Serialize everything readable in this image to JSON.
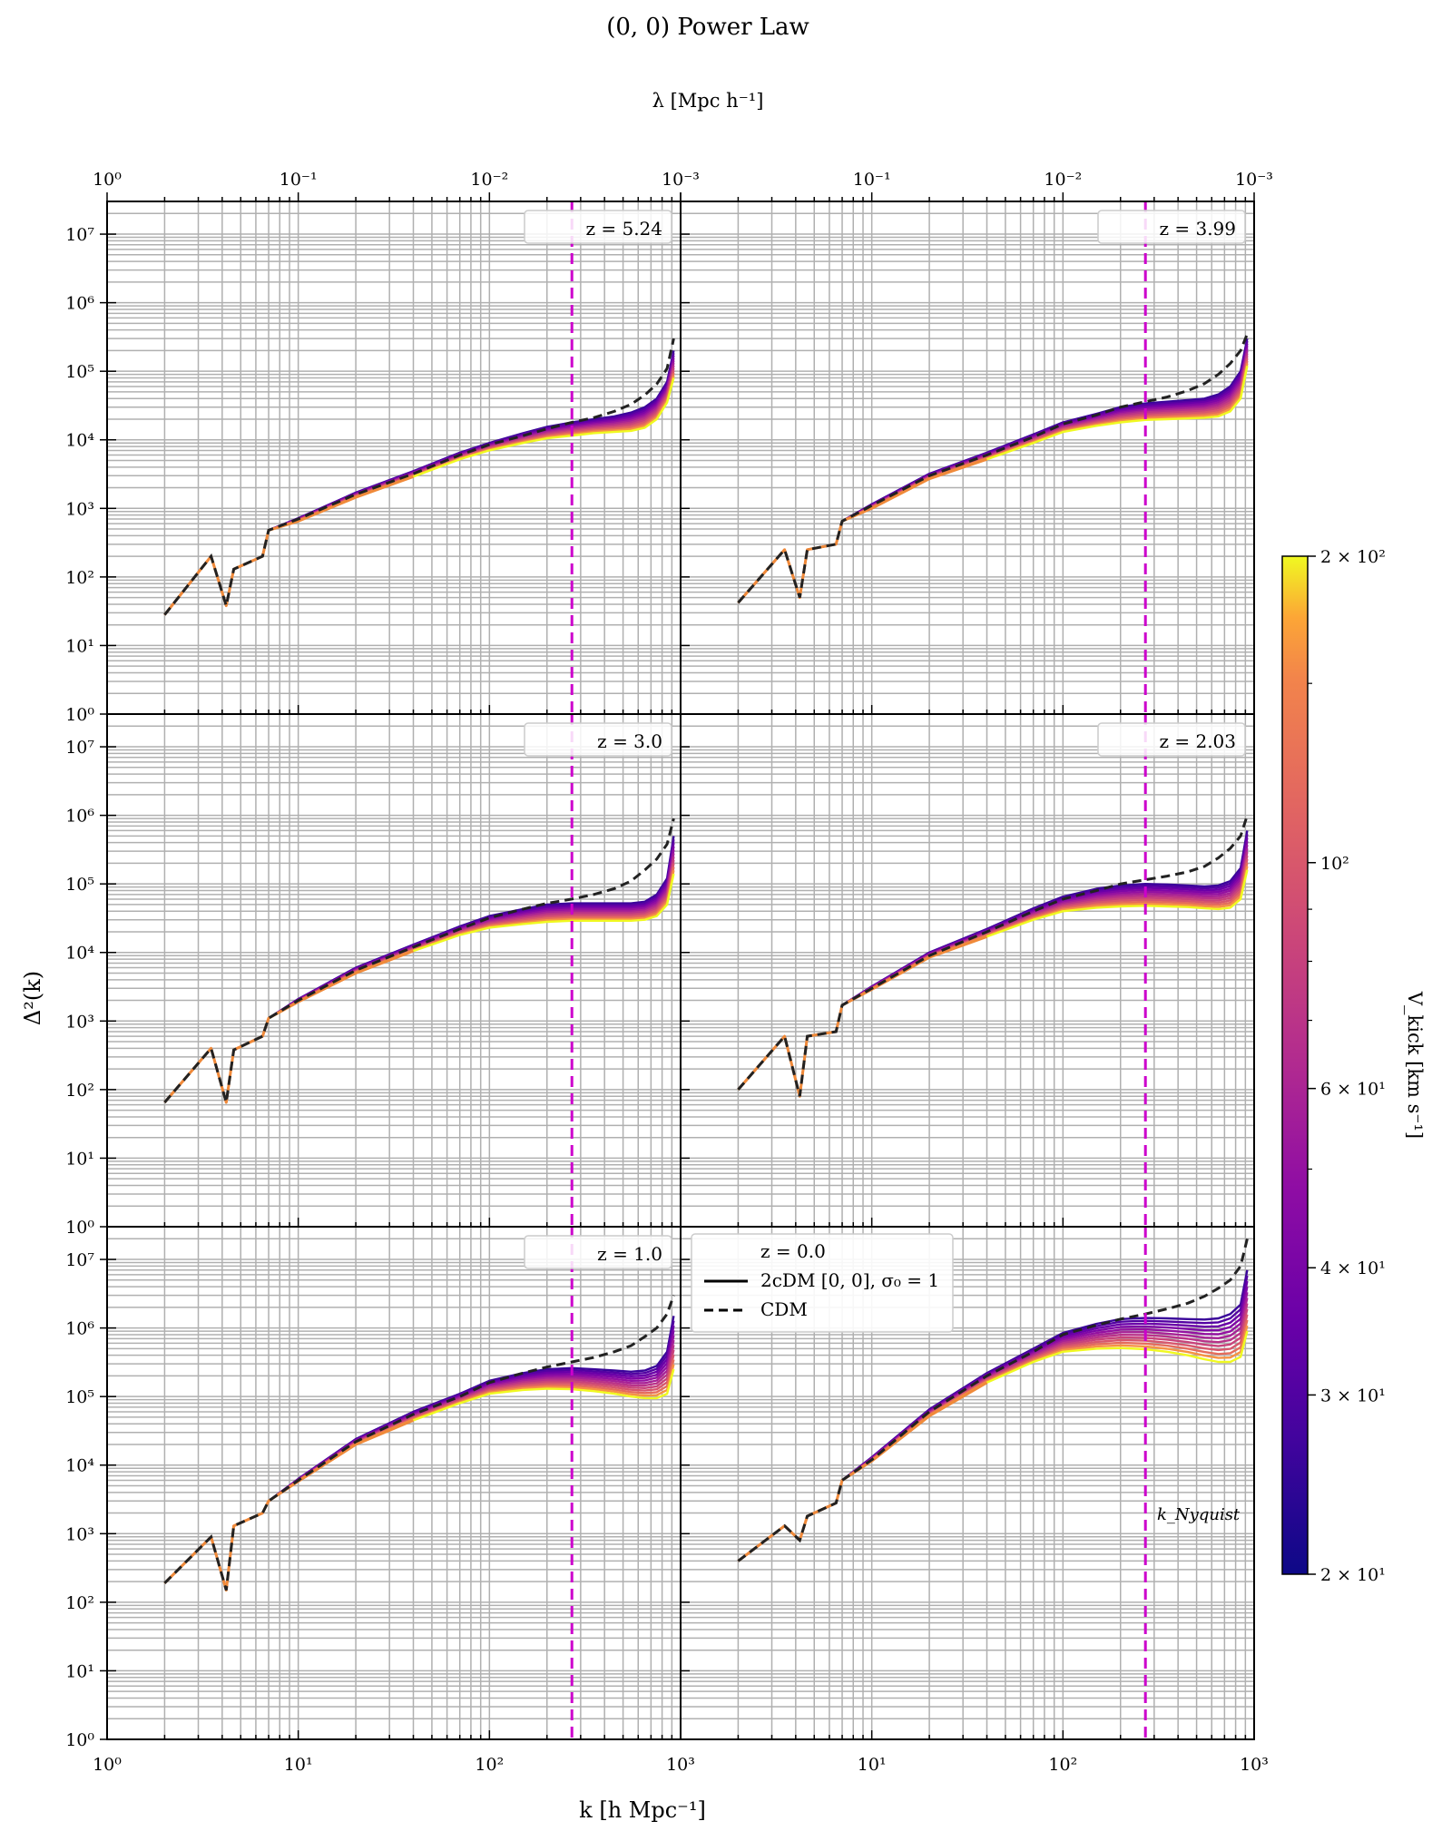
{
  "title": "(0, 0) Power Law",
  "top_axis_label": "λ [Mpc h⁻¹]",
  "bottom_axis_label": "k [h Mpc⁻¹]",
  "left_axis_label": "Δ²(k)",
  "colorbar": {
    "label": "V_kick [km s⁻¹]",
    "colormap": "plasma",
    "range": [
      20,
      200
    ],
    "scale": "log",
    "tick_labels": [
      "2 × 10¹",
      "3 × 10¹",
      "4 × 10¹",
      "6 × 10¹",
      "10²",
      "2 × 10²"
    ],
    "tick_values": [
      20,
      30,
      40,
      60,
      100,
      200
    ]
  },
  "legend": {
    "title": "z = 0.0",
    "entries": [
      {
        "label": "2cDM [0, 0], σ₀ = 1",
        "style": "solid"
      },
      {
        "label": "CDM",
        "style": "dashed"
      }
    ]
  },
  "annotation": "k_Nyquist",
  "chart_data": {
    "type": "line",
    "layout": "3x2 panels, shared axes",
    "x_scale": "log",
    "y_scale": "log",
    "xlim": [
      1,
      1000
    ],
    "ylim": [
      1,
      30000000
    ],
    "x_tick_labels": [
      "10⁰",
      "10¹",
      "10²",
      "10³"
    ],
    "y_tick_labels": [
      "10⁰",
      "10¹",
      "10²",
      "10³",
      "10⁴",
      "10⁵",
      "10⁶",
      "10⁷"
    ],
    "top_x_tick_labels": [
      "10⁰",
      "10⁻¹",
      "10⁻²",
      "10⁻³"
    ],
    "grid": true,
    "vertical_line": {
      "x": 270,
      "color": "#cc00cc",
      "style": "dashed"
    },
    "series_count": 12,
    "panels": [
      {
        "label": "z = 5.24",
        "k_points": [
          2,
          3.5,
          4.2,
          4.6,
          6.5,
          7,
          10,
          20,
          40,
          70,
          100,
          150,
          200,
          270,
          350,
          450,
          550,
          650,
          750,
          850,
          920
        ],
        "cdm": [
          28,
          200,
          38,
          130,
          200,
          480,
          700,
          1600,
          3200,
          6000,
          8500,
          11500,
          14500,
          18000,
          21000,
          26000,
          33000,
          45000,
          65000,
          110000,
          300000
        ],
        "low_v": [
          28,
          200,
          38,
          130,
          200,
          480,
          720,
          1700,
          3500,
          6500,
          9000,
          12500,
          15500,
          18000,
          20000,
          22000,
          25000,
          30000,
          40000,
          70000,
          200000
        ],
        "high_v": [
          28,
          200,
          38,
          130,
          200,
          480,
          650,
          1450,
          2900,
          5200,
          7000,
          9000,
          10500,
          11500,
          12500,
          13000,
          13500,
          15000,
          20000,
          35000,
          80000
        ]
      },
      {
        "label": "z = 3.99",
        "k_points": [
          2,
          3.5,
          4.2,
          4.6,
          6.5,
          7,
          10,
          20,
          40,
          70,
          100,
          150,
          200,
          270,
          350,
          450,
          550,
          650,
          750,
          850,
          920
        ],
        "cdm": [
          42,
          250,
          50,
          250,
          300,
          650,
          1100,
          3000,
          6000,
          11000,
          17000,
          23000,
          30000,
          36000,
          42000,
          52000,
          66000,
          90000,
          130000,
          200000,
          350000
        ],
        "low_v": [
          42,
          250,
          50,
          250,
          300,
          650,
          1150,
          3200,
          6500,
          12000,
          18000,
          24000,
          30000,
          34000,
          36000,
          38000,
          40000,
          46000,
          60000,
          100000,
          300000
        ],
        "high_v": [
          42,
          250,
          50,
          250,
          300,
          650,
          1000,
          2700,
          5200,
          9000,
          13000,
          16000,
          18000,
          19500,
          20000,
          20500,
          21000,
          22000,
          26000,
          40000,
          120000
        ]
      },
      {
        "label": "z = 3.0",
        "k_points": [
          2,
          3.5,
          4.2,
          4.6,
          6.5,
          7,
          10,
          20,
          40,
          70,
          100,
          150,
          200,
          270,
          350,
          450,
          550,
          650,
          750,
          850,
          920
        ],
        "cdm": [
          65,
          400,
          65,
          380,
          600,
          1100,
          2000,
          5500,
          12000,
          22000,
          32000,
          43000,
          52000,
          60000,
          70000,
          85000,
          110000,
          160000,
          230000,
          380000,
          900000
        ],
        "low_v": [
          65,
          400,
          65,
          380,
          600,
          1100,
          2100,
          6000,
          13000,
          24000,
          34000,
          43000,
          50000,
          52000,
          52000,
          52000,
          52000,
          55000,
          70000,
          120000,
          500000
        ],
        "high_v": [
          65,
          400,
          65,
          380,
          600,
          1100,
          1900,
          5000,
          10500,
          18000,
          23000,
          26000,
          28000,
          29000,
          29000,
          29000,
          29000,
          30000,
          34000,
          50000,
          140000
        ]
      },
      {
        "label": "z = 2.03",
        "k_points": [
          2,
          3.5,
          4.2,
          4.6,
          6.5,
          7,
          10,
          20,
          40,
          70,
          100,
          150,
          200,
          270,
          350,
          450,
          550,
          650,
          750,
          850,
          920
        ],
        "cdm": [
          100,
          600,
          80,
          600,
          700,
          1700,
          3000,
          9000,
          20000,
          40000,
          60000,
          80000,
          100000,
          115000,
          130000,
          150000,
          180000,
          240000,
          330000,
          500000,
          1000000
        ],
        "low_v": [
          100,
          600,
          80,
          600,
          700,
          1700,
          3200,
          10000,
          22000,
          44000,
          65000,
          85000,
          95000,
          100000,
          98000,
          95000,
          92000,
          95000,
          110000,
          170000,
          600000
        ],
        "high_v": [
          100,
          600,
          80,
          600,
          700,
          1700,
          2900,
          8500,
          17000,
          30000,
          40000,
          45000,
          47000,
          48000,
          47000,
          46000,
          44000,
          43000,
          45000,
          60000,
          160000
        ]
      },
      {
        "label": "z = 1.0",
        "k_points": [
          2,
          3.5,
          4.2,
          4.6,
          6.5,
          7,
          10,
          20,
          40,
          70,
          100,
          150,
          200,
          270,
          350,
          450,
          550,
          650,
          750,
          850,
          920
        ],
        "cdm": [
          190,
          900,
          150,
          1300,
          2000,
          3000,
          6000,
          22000,
          55000,
          100000,
          160000,
          220000,
          270000,
          320000,
          370000,
          450000,
          550000,
          750000,
          1000000,
          1600000,
          3000000
        ],
        "low_v": [
          190,
          900,
          150,
          1300,
          2000,
          3000,
          6300,
          24000,
          60000,
          110000,
          170000,
          220000,
          250000,
          260000,
          250000,
          240000,
          230000,
          240000,
          280000,
          450000,
          1500000
        ],
        "high_v": [
          190,
          900,
          150,
          1300,
          2000,
          3000,
          5800,
          20000,
          45000,
          80000,
          110000,
          125000,
          130000,
          128000,
          120000,
          110000,
          100000,
          95000,
          95000,
          110000,
          250000
        ]
      },
      {
        "label": "z = 0.0",
        "k_points": [
          2,
          3.5,
          4.2,
          4.6,
          6.5,
          7,
          10,
          20,
          40,
          70,
          100,
          150,
          200,
          270,
          350,
          450,
          550,
          650,
          750,
          850,
          920
        ],
        "cdm": [
          400,
          1300,
          800,
          1800,
          2800,
          6000,
          12000,
          60000,
          200000,
          450000,
          800000,
          1100000,
          1350000,
          1600000,
          1900000,
          2300000,
          2900000,
          3800000,
          5000000,
          8000000,
          20000000
        ],
        "low_v": [
          400,
          1300,
          800,
          1800,
          2800,
          6000,
          13000,
          65000,
          220000,
          500000,
          850000,
          1150000,
          1350000,
          1400000,
          1380000,
          1350000,
          1330000,
          1380000,
          1600000,
          2200000,
          7000000
        ],
        "high_v": [
          400,
          1300,
          800,
          1800,
          2800,
          6000,
          11500,
          52000,
          160000,
          320000,
          450000,
          500000,
          510000,
          490000,
          450000,
          400000,
          350000,
          320000,
          320000,
          380000,
          900000
        ]
      }
    ]
  }
}
